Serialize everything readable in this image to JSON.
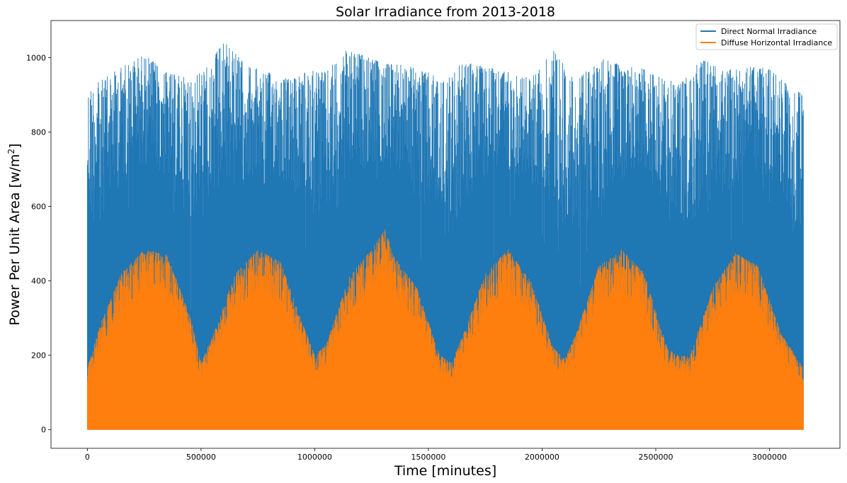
{
  "chart_data": {
    "type": "line",
    "title": "Solar Irradiance from 2013-2018",
    "xlabel": "Time [minutes]",
    "ylabel_main": "Power Per Unit Area [w/m",
    "ylabel_sup": "2",
    "ylabel_end": "]",
    "xlim": [
      -160000,
      3310000
    ],
    "ylim": [
      -50,
      1100
    ],
    "x_ticks": [
      0,
      500000,
      1000000,
      1500000,
      2000000,
      2500000,
      3000000
    ],
    "x_tick_labels": [
      "0",
      "500000",
      "1000000",
      "1500000",
      "2000000",
      "2500000",
      "3000000"
    ],
    "y_ticks": [
      0,
      200,
      400,
      600,
      800,
      1000
    ],
    "y_tick_labels": [
      "0",
      "200",
      "400",
      "600",
      "800",
      "1000"
    ],
    "x_range": [
      0,
      3150000
    ],
    "grid": false,
    "legend_position": "top-right",
    "series": [
      {
        "name": "Direct Normal Irradiance",
        "color": "#1f77b4",
        "envelope": {
          "x": [
            0,
            150000,
            250000,
            350000,
            450000,
            525000,
            600000,
            700000,
            800000,
            900000,
            1000000,
            1050000,
            1125000,
            1200000,
            1300000,
            1400000,
            1500000,
            1575000,
            1650000,
            1750000,
            1850000,
            1950000,
            2050000,
            2150000,
            2250000,
            2350000,
            2450000,
            2550000,
            2625000,
            2700000,
            2800000,
            2900000,
            3000000,
            3100000,
            3150000
          ],
          "upper": [
            915,
            975,
            1010,
            960,
            945,
            975,
            1045,
            980,
            960,
            940,
            975,
            960,
            1020,
            1010,
            985,
            980,
            960,
            935,
            990,
            975,
            965,
            945,
            1020,
            935,
            1000,
            980,
            970,
            940,
            940,
            1000,
            965,
            980,
            970,
            915,
            905
          ],
          "lower": [
            190,
            390,
            470,
            420,
            260,
            200,
            240,
            410,
            470,
            380,
            250,
            190,
            290,
            440,
            480,
            440,
            280,
            180,
            240,
            420,
            470,
            410,
            270,
            190,
            230,
            420,
            470,
            330,
            250,
            220,
            300,
            460,
            440,
            300,
            190
          ]
        }
      },
      {
        "name": "Diffuse Horizontal Irradiance",
        "color": "#ff7f0e",
        "envelope": {
          "x": [
            0,
            60000,
            150000,
            250000,
            350000,
            450000,
            500000,
            550000,
            650000,
            750000,
            850000,
            950000,
            1000000,
            1050000,
            1150000,
            1250000,
            1310000,
            1350000,
            1450000,
            1550000,
            1600000,
            1650000,
            1750000,
            1850000,
            1950000,
            2050000,
            2100000,
            2150000,
            2250000,
            2350000,
            2450000,
            2550000,
            2600000,
            2650000,
            2750000,
            2850000,
            2950000,
            3050000,
            3150000
          ],
          "upper": [
            165,
            290,
            420,
            485,
            470,
            310,
            180,
            250,
            420,
            485,
            450,
            280,
            200,
            230,
            410,
            485,
            540,
            465,
            380,
            200,
            180,
            250,
            420,
            485,
            400,
            220,
            190,
            260,
            440,
            485,
            420,
            220,
            200,
            200,
            380,
            475,
            440,
            260,
            165
          ]
        }
      }
    ]
  }
}
